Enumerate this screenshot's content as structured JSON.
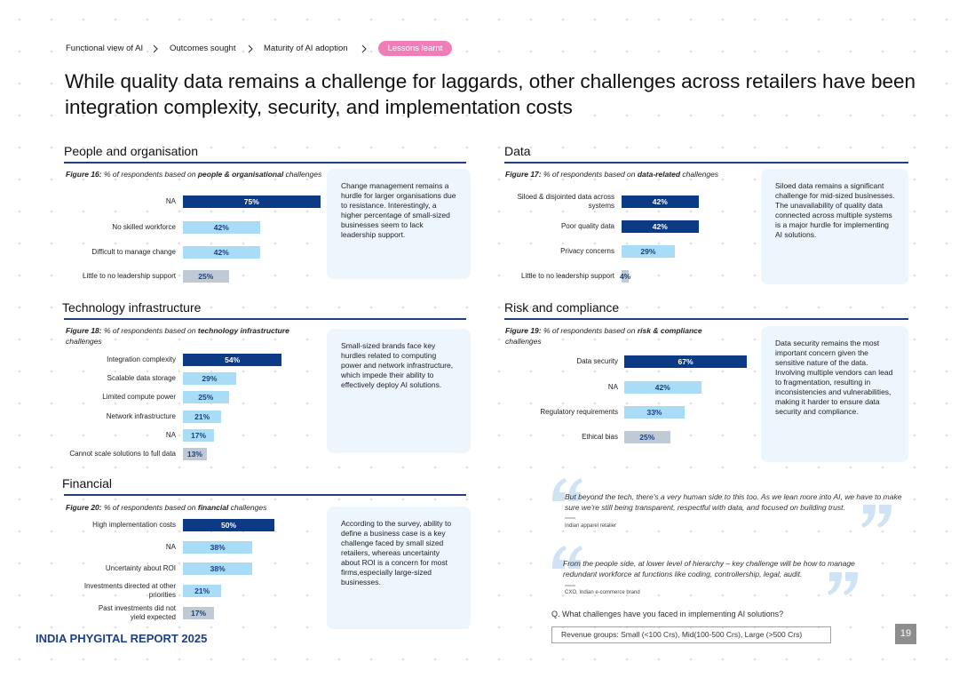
{
  "breadcrumb": [
    "Functional view of AI",
    "Outcomes sought",
    "Maturity of AI adoption",
    "Lessons learnt"
  ],
  "title": "While quality data remains a challenge for laggards, other challenges across retailers have been integration complexity, security, and implementation costs",
  "chart_data": [
    {
      "type": "bar",
      "heading": "People and organisation",
      "figure_label": "Figure 16:",
      "caption": [
        "% of respondents based on ",
        "people & organisational",
        " challenges"
      ],
      "categories": [
        "NA",
        "No skilled workforce",
        "Difficult to manage change",
        "Little to no leadership support"
      ],
      "values": [
        75,
        42,
        42,
        25
      ],
      "value_labels": [
        "75%",
        "42%",
        "42%",
        "25%"
      ],
      "colors": [
        "#0c3a84",
        "#a9dcf7",
        "#a9dcf7",
        "#bfcad4"
      ],
      "note": "Change management remains a hurdle for larger organisations due to resistance. Interestingly, a higher percentage of small-sized businesses seem to lack leadership support."
    },
    {
      "type": "bar",
      "heading": "Data",
      "figure_label": "Figure 17:",
      "caption": [
        "% of respondents based on ",
        "data-related",
        " challenges"
      ],
      "categories": [
        "Siloed & disjointed data across systems",
        "Poor quality data",
        "Privacy concerns",
        "Little to no leadership support"
      ],
      "values": [
        42,
        42,
        29,
        4
      ],
      "value_labels": [
        "42%",
        "42%",
        "29%",
        "4%"
      ],
      "colors": [
        "#0c3a84",
        "#0c3a84",
        "#a9dcf7",
        "#bfcad4"
      ],
      "note": "Siloed data remains a significant challenge for mid-sized businesses. The unavailability of quality data connected across multiple systems is a major hurdle for implementing AI solutions."
    },
    {
      "type": "bar",
      "heading": "Technology infrastructure",
      "figure_label": "Figure 18:",
      "caption": [
        "% of respondents based on ",
        "technology infrastructure",
        " challenges"
      ],
      "categories": [
        "Integration complexity",
        "Scalable data storage",
        "Limited compute power",
        "Network infrastructure",
        "NA",
        "Cannot scale solutions to full data"
      ],
      "values": [
        54,
        29,
        25,
        21,
        17,
        13
      ],
      "value_labels": [
        "54%",
        "29%",
        "25%",
        "21%",
        "17%",
        "13%"
      ],
      "colors": [
        "#0c3a84",
        "#a9dcf7",
        "#a9dcf7",
        "#a9dcf7",
        "#a9dcf7",
        "#bfcad4"
      ],
      "note": "Small-sized brands face key hurdles related to computing power and network infrastructure, which impede their ability to effectively deploy AI solutions."
    },
    {
      "type": "bar",
      "heading": "Risk and compliance",
      "figure_label": "Figure 19:",
      "caption": [
        "% of respondents based on ",
        "risk & compliance",
        " challenges"
      ],
      "categories": [
        "Data security",
        "NA",
        "Regulatory requirements",
        "Ethical bias"
      ],
      "values": [
        67,
        42,
        33,
        25
      ],
      "value_labels": [
        "67%",
        "42%",
        "33%",
        "25%"
      ],
      "colors": [
        "#0c3a84",
        "#a9dcf7",
        "#a9dcf7",
        "#bfcad4"
      ],
      "note": "Data security remains the most important concern given the sensitive nature of the data. Involving multiple vendors can lead to fragmentation, resulting in inconsistencies and vulnerabilities, making it harder to ensure data security and compliance."
    },
    {
      "type": "bar",
      "heading": "Financial",
      "figure_label": "Figure 20:",
      "caption": [
        "% of respondents based on ",
        "financial",
        " challenges"
      ],
      "categories": [
        "High implementation costs",
        "NA",
        "Uncertainty about ROI",
        "Investments directed at other priorities",
        "Past investments did not yield expected"
      ],
      "values": [
        50,
        38,
        38,
        21,
        17
      ],
      "value_labels": [
        "50%",
        "38%",
        "38%",
        "21%",
        "17%"
      ],
      "colors": [
        "#0c3a84",
        "#a9dcf7",
        "#a9dcf7",
        "#a9dcf7",
        "#bfcad4"
      ],
      "note": "According to the survey, ability to define a business case is a key challenge faced by small sized retailers, whereas uncertainty about ROI is a concern for most firms,especially large-sized businesses."
    }
  ],
  "quotes": [
    {
      "text": "But beyond the tech, there's a very human side to this too. As we lean more into AI, we have to make sure we're still being transparent, respectful with data, and focused on building trust.",
      "source": "Indian apparel retailer"
    },
    {
      "text": "From the people side, at lower level of hierarchy – key challenge will be how to manage redundant workforce at functions like coding, controllership, legal, audit.",
      "source": "CXO, Indian e-commerce brand"
    }
  ],
  "question": "Q. What challenges have you faced in implementing AI solutions?",
  "revenue_groups": "Revenue groups: Small (<100 Crs), Mid(100-500 Crs), Large (>500 Crs)",
  "footer": "INDIA PHYGITAL REPORT 2025",
  "page_number": 19
}
